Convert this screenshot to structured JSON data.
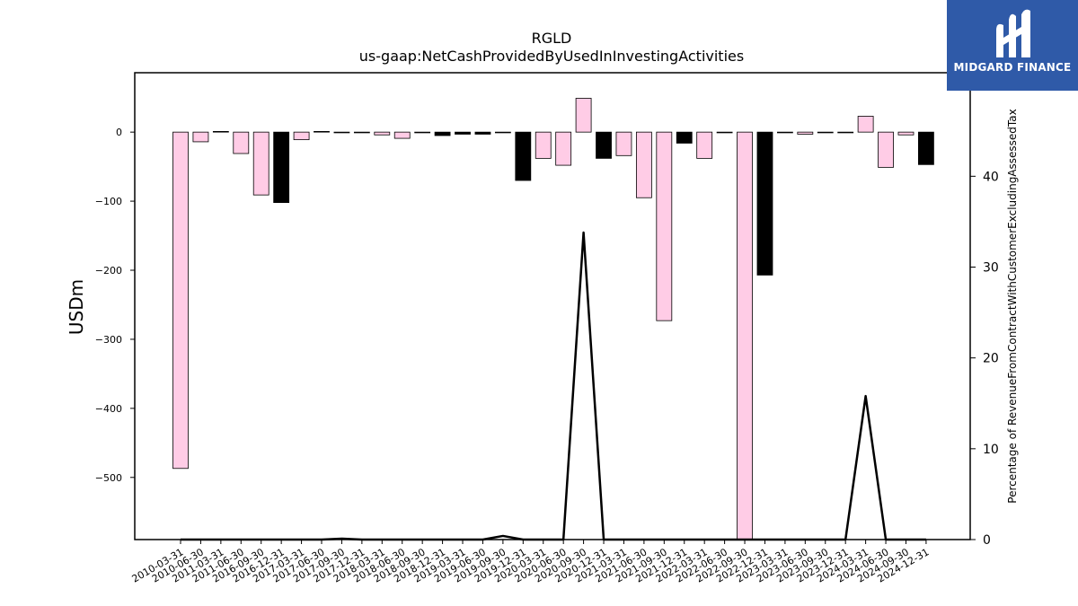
{
  "logo": {
    "text": "MIDGARD FINANCE",
    "icon": "midgard-m-logo-icon",
    "background": "#2f5aa8"
  },
  "chart_data": {
    "type": "bar",
    "title": "RGLD",
    "subtitle": "us-gaap:NetCashProvidedByUsedInInvestingActivities",
    "ylabel": "USDm",
    "y2label": "Percentage of RevenueFromContractWithCustomerExcludingAssessedTax",
    "ylim": [
      -590,
      86
    ],
    "y2lim": [
      0,
      51.4
    ],
    "yticks": [
      0,
      -100,
      -200,
      -300,
      -400,
      -500
    ],
    "y2ticks": [
      0,
      10,
      20,
      30,
      40
    ],
    "grid": false,
    "categories": [
      "2010-03-31",
      "2010-06-30",
      "2011-03-31",
      "2011-06-30",
      "2016-09-30",
      "2016-12-31",
      "2017-03-31",
      "2017-06-30",
      "2017-09-30",
      "2017-12-31",
      "2018-03-31",
      "2018-06-30",
      "2018-09-30",
      "2018-12-31",
      "2019-03-31",
      "2019-06-30",
      "2019-09-30",
      "2019-12-31",
      "2020-03-31",
      "2020-06-30",
      "2020-09-30",
      "2020-12-31",
      "2021-03-31",
      "2021-06-30",
      "2021-09-30",
      "2021-12-31",
      "2022-03-31",
      "2022-06-30",
      "2022-09-30",
      "2022-12-31",
      "2023-03-31",
      "2023-06-30",
      "2023-09-30",
      "2023-12-31",
      "2024-03-31",
      "2024-06-30",
      "2024-09-30",
      "2024-12-31"
    ],
    "series": [
      {
        "values": [
          -487,
          -14,
          1,
          -31,
          -91,
          -102,
          -11,
          1,
          -1,
          -1,
          -4,
          -9,
          -1,
          -5,
          -3,
          -3,
          -1,
          -70,
          -38,
          -48,
          49,
          -38,
          -34,
          -95,
          -273,
          -16,
          -38,
          -1,
          -590,
          -207,
          -1,
          -3,
          -1,
          -1,
          23,
          -51,
          -4,
          -47
        ],
        "colors": [
          "#ffcce6",
          "#ffcce6",
          "#000000",
          "#ffcce6",
          "#ffcce6",
          "#000000",
          "#ffcce6",
          "#000000",
          "#000000",
          "#000000",
          "#ffcce6",
          "#ffcce6",
          "#000000",
          "#000000",
          "#000000",
          "#000000",
          "#000000",
          "#000000",
          "#ffcce6",
          "#ffcce6",
          "#ffcce6",
          "#000000",
          "#ffcce6",
          "#ffcce6",
          "#ffcce6",
          "#000000",
          "#ffcce6",
          "#000000",
          "#ffcce6",
          "#000000",
          "#000000",
          "#ffcce6",
          "#000000",
          "#000000",
          "#ffcce6",
          "#ffcce6",
          "#ffcce6",
          "#000000"
        ]
      },
      {
        "type": "line",
        "axis": "right",
        "color": "#000000",
        "values": [
          0,
          0,
          0,
          0,
          0,
          0,
          0,
          0,
          0.1,
          0,
          0,
          0,
          0,
          0,
          0,
          0,
          0.4,
          0,
          0,
          0,
          33.8,
          0,
          0,
          0,
          0,
          0,
          0,
          0,
          0,
          0,
          0,
          0,
          0,
          0,
          15.8,
          0,
          0,
          0
        ]
      }
    ]
  }
}
